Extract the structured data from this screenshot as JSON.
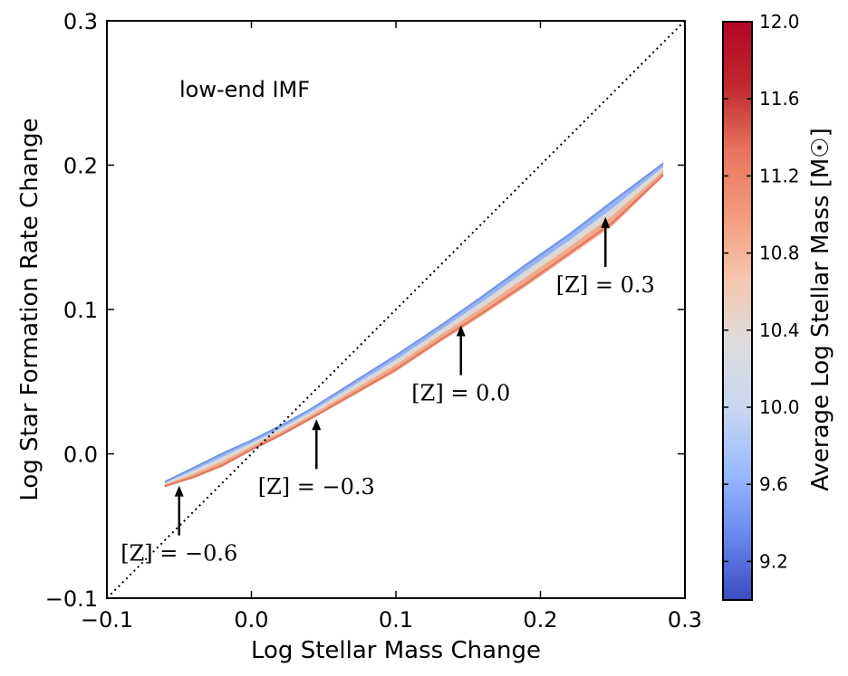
{
  "chart_data": {
    "type": "scatter",
    "inset_label": "low-end IMF",
    "xlabel": "Log Stellar Mass Change",
    "ylabel": "Log Star Formation Rate Change",
    "xlim": [
      -0.1,
      0.3
    ],
    "ylim": [
      -0.1,
      0.3
    ],
    "xticks": [
      "−0.1",
      "0.0",
      "0.1",
      "0.2",
      "0.3"
    ],
    "xtick_values": [
      -0.1,
      0.0,
      0.1,
      0.2,
      0.3
    ],
    "yticks": [
      "−0.1",
      "0.0",
      "0.1",
      "0.2",
      "0.3"
    ],
    "ytick_values": [
      -0.1,
      0.0,
      0.1,
      0.2,
      0.3
    ],
    "reference_line": {
      "style": "dotted",
      "x": [
        -0.1,
        0.3
      ],
      "y": [
        -0.1,
        0.3
      ]
    },
    "band": {
      "description": "galaxy distribution coloured by average log stellar mass",
      "x": [
        -0.06,
        -0.04,
        -0.02,
        0.0,
        0.02,
        0.04,
        0.07,
        0.1,
        0.13,
        0.16,
        0.19,
        0.22,
        0.25,
        0.285
      ],
      "y_center": [
        -0.021,
        -0.013,
        -0.004,
        0.006,
        0.016,
        0.027,
        0.045,
        0.063,
        0.083,
        0.103,
        0.124,
        0.145,
        0.167,
        0.197
      ],
      "half_width": [
        0.002,
        0.004,
        0.005,
        0.004,
        0.004,
        0.004,
        0.005,
        0.006,
        0.006,
        0.007,
        0.008,
        0.008,
        0.009,
        0.005
      ]
    },
    "annotations": [
      {
        "label": "[Z] = −0.6",
        "x": -0.05,
        "y": -0.022
      },
      {
        "label": "[Z] = −0.3",
        "x": 0.045,
        "y": 0.024
      },
      {
        "label": "[Z] = 0.0",
        "x": 0.145,
        "y": 0.089
      },
      {
        "label": "[Z] = 0.3",
        "x": 0.245,
        "y": 0.164
      }
    ],
    "colorbar": {
      "label": "Average Log Stellar Mass [M☉]",
      "range": [
        9.0,
        12.0
      ],
      "ticks": [
        9.2,
        9.6,
        10.0,
        10.4,
        10.8,
        11.2,
        11.6,
        12.0
      ],
      "tick_labels": [
        "9.2",
        "9.6",
        "10.0",
        "10.4",
        "10.8",
        "11.2",
        "11.6",
        "12.0"
      ],
      "colormap": "coolwarm",
      "color_stops": [
        "#3b4cc0",
        "#6788ee",
        "#9abbff",
        "#c9d7f0",
        "#dddddd",
        "#f6c6ad",
        "#f49a7b",
        "#e7745b",
        "#c0282f",
        "#b40426"
      ]
    }
  }
}
